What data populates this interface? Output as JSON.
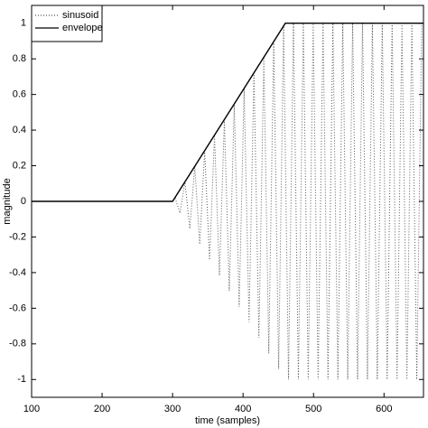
{
  "chart_data": {
    "type": "line",
    "xlabel": "time (samples)",
    "ylabel": "magnitude",
    "xlim": [
      100,
      656
    ],
    "ylim": [
      -1.1,
      1.1
    ],
    "xticks": [
      100,
      200,
      300,
      400,
      500,
      600
    ],
    "yticks": [
      -1,
      -0.8,
      -0.6,
      -0.4,
      -0.2,
      0,
      0.2,
      0.4,
      0.6,
      0.8,
      1
    ],
    "grid": false,
    "legend": "upper left",
    "series": [
      {
        "name": "sinusoid",
        "color": "#555555",
        "style": "dotted",
        "x": [
          100,
          300,
          303.5,
          310.5,
          317.5,
          324.5,
          331.5,
          338.5,
          345.5,
          352.5,
          359.5,
          366.5,
          373.5,
          380.5,
          387.5,
          394.5,
          401.5,
          408.5,
          415.5,
          422.5,
          429.5,
          436.5,
          443.5,
          450.5,
          457.5,
          464.5,
          471.5,
          478.5,
          485.5,
          492.5,
          499.5,
          506.5,
          513.5,
          520.5,
          527.5,
          534.5,
          541.5,
          548.5,
          555.5,
          562.5,
          569.5,
          576.5,
          583.5,
          590.5,
          597.5,
          604.5,
          611.5,
          618.5,
          625.5,
          632.5,
          639.5,
          646.5,
          653.5
        ],
        "values": [
          0,
          0,
          0.022,
          -0.066,
          0.109,
          -0.153,
          0.197,
          -0.241,
          0.284,
          -0.328,
          0.372,
          -0.416,
          0.459,
          -0.503,
          0.547,
          -0.591,
          0.634,
          -0.678,
          0.722,
          -0.766,
          0.809,
          -0.853,
          0.897,
          -0.941,
          0.984,
          -1,
          1,
          -1,
          1,
          -1,
          1,
          -1,
          1,
          -1,
          1,
          -1,
          1,
          -1,
          1,
          -1,
          1,
          -1,
          1,
          -1,
          1,
          -1,
          1,
          -1,
          1,
          -1,
          1,
          -1,
          1
        ]
      },
      {
        "name": "envelope",
        "color": "#000000",
        "style": "solid",
        "x": [
          100,
          300,
          460,
          656
        ],
        "values": [
          0,
          0,
          1,
          1
        ]
      }
    ]
  }
}
